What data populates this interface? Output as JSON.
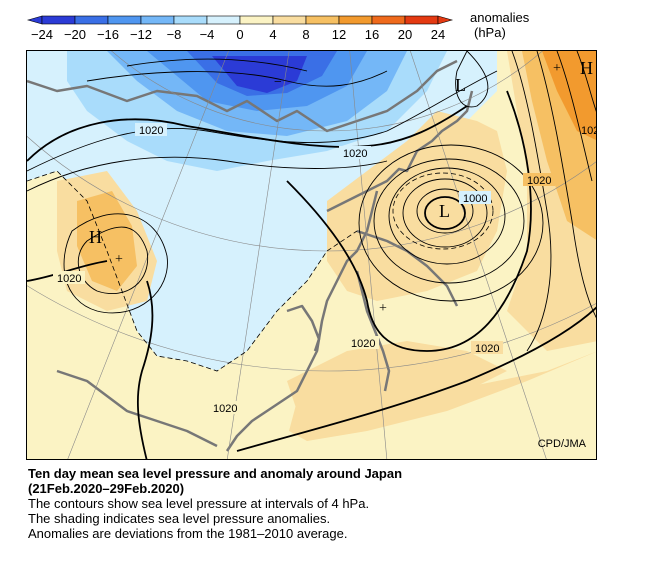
{
  "colorbar": {
    "unit_line1": "anomalies",
    "unit_line2": "(hPa)",
    "ticks": [
      "−24",
      "−20",
      "−16",
      "−12",
      "−8",
      "−4",
      "0",
      "4",
      "8",
      "12",
      "16",
      "20",
      "24"
    ],
    "colors": [
      "#2b3bd6",
      "#3a6fe6",
      "#4f96f0",
      "#74b7f7",
      "#a9dcfb",
      "#d6f1fd",
      "#fbf3c4",
      "#f9dda0",
      "#f6c063",
      "#f29a2e",
      "#ef6a1c",
      "#e43a12"
    ]
  },
  "map": {
    "high_symbol": "H",
    "low_symbol": "L",
    "plus_symbol": "+",
    "contour_labels": [
      "1020",
      "1020",
      "1020",
      "1020",
      "1020",
      "1020",
      "1000",
      "1020",
      "102"
    ],
    "credit": "CPD/JMA"
  },
  "caption": {
    "title": "Ten day mean sea level pressure and anomaly around Japan",
    "period": "(21Feb.2020–29Feb.2020)",
    "line1": "The contours show sea level pressure at intervals of 4 hPa.",
    "line2": "The shading indicates sea level pressure anomalies.",
    "line3": "Anomalies are deviations from the 1981–2010 average."
  }
}
